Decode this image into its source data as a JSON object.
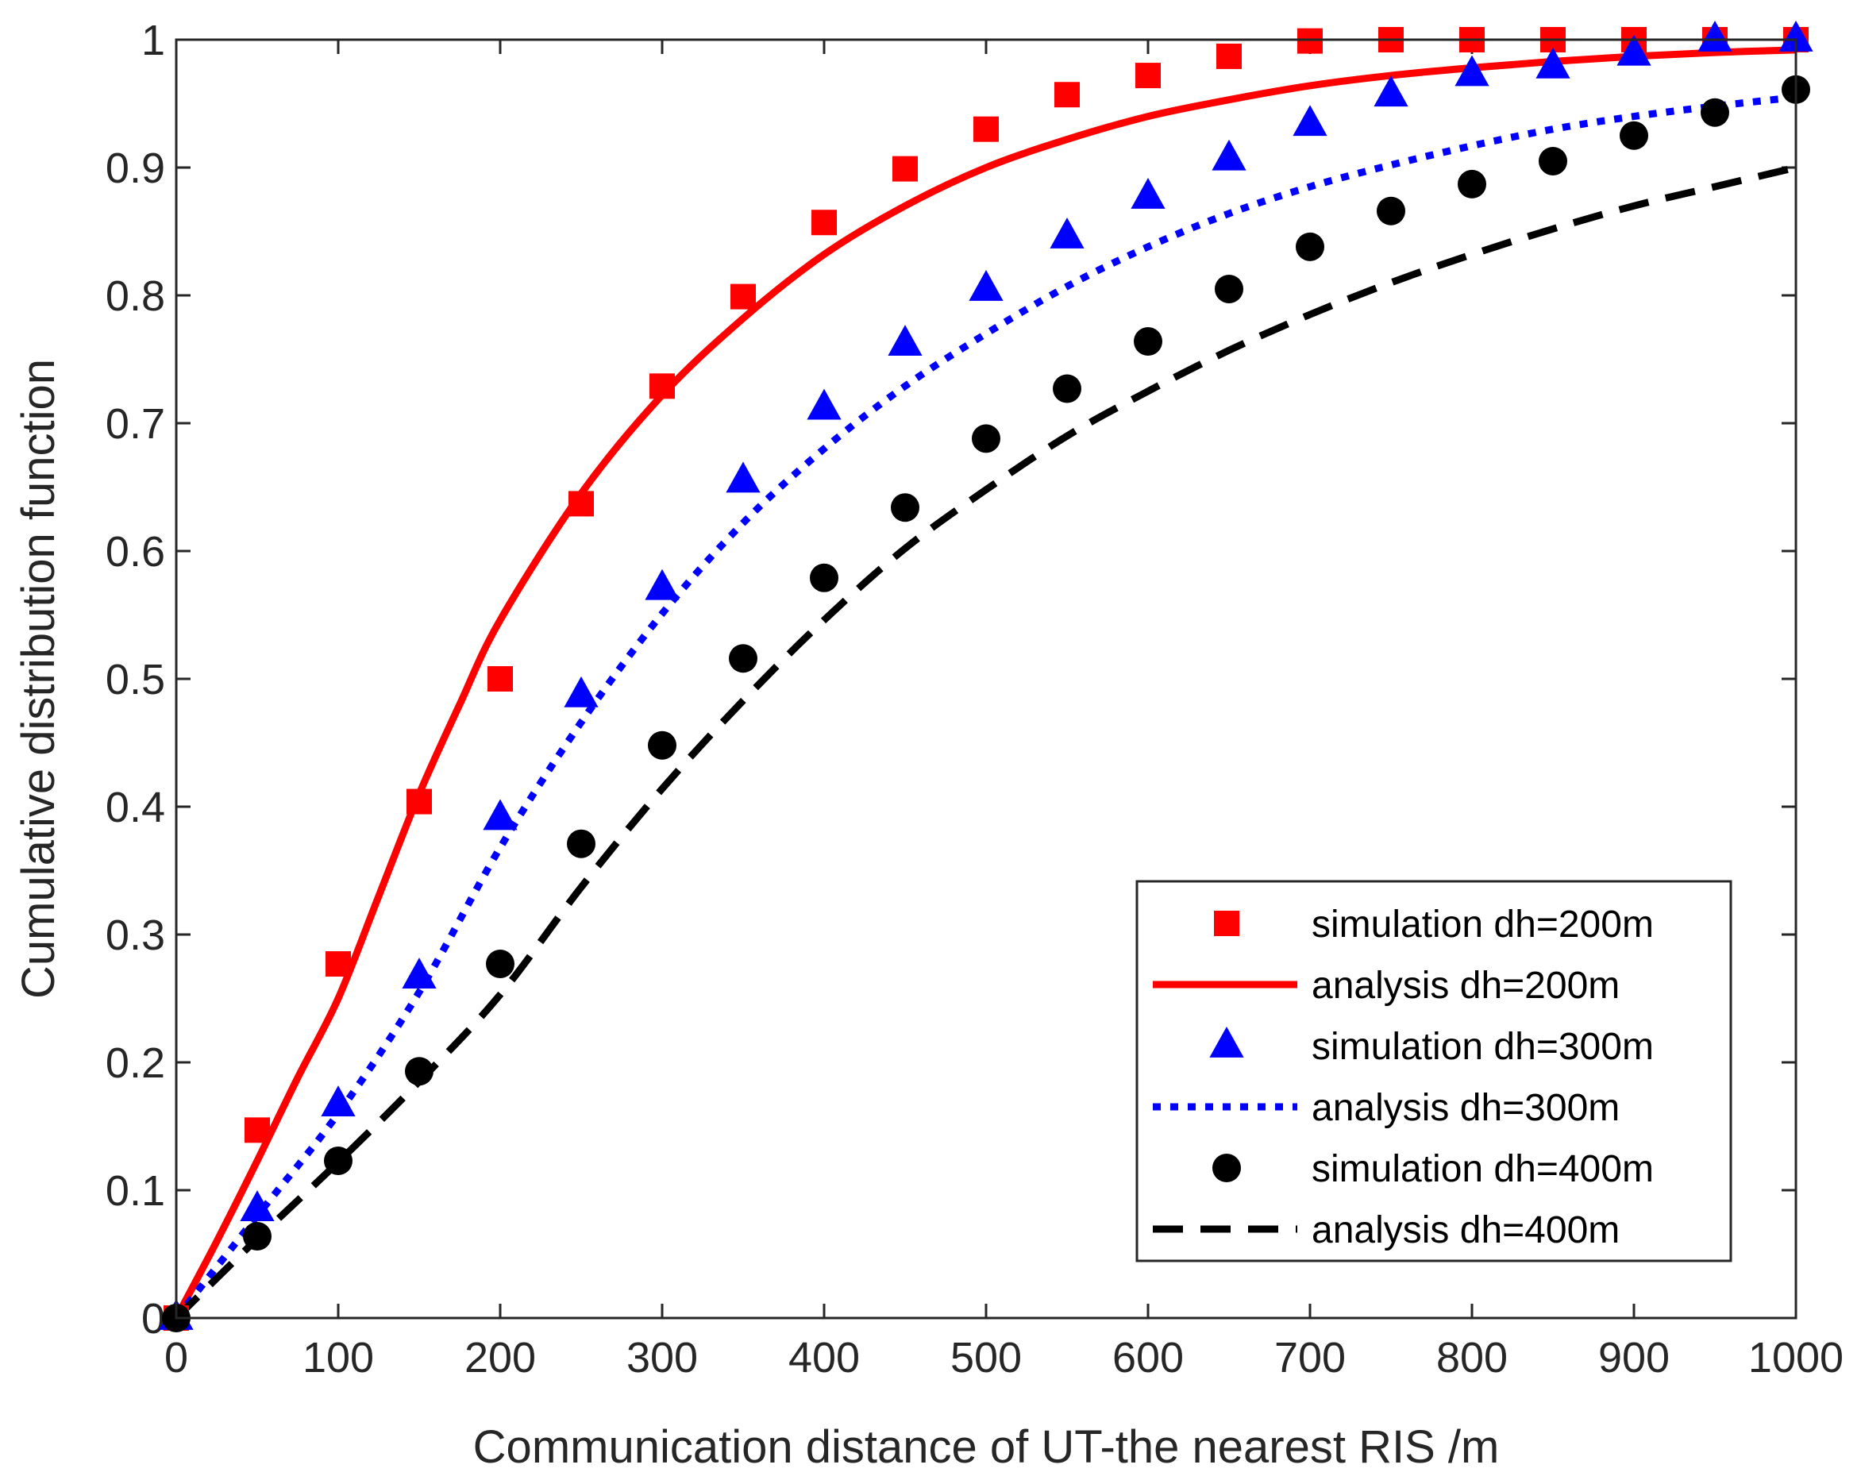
{
  "chart_data": {
    "type": "line",
    "title": "",
    "xlabel": "Communication distance of UT-the nearest RIS /m",
    "ylabel": "Cumulative distribution function",
    "xlim": [
      0,
      1000
    ],
    "ylim": [
      0,
      1
    ],
    "xticks": [
      0,
      100,
      200,
      300,
      400,
      500,
      600,
      700,
      800,
      900,
      1000
    ],
    "xtick_labels": [
      "0",
      "100",
      "200",
      "300",
      "400",
      "500",
      "600",
      "700",
      "800",
      "900",
      "1000"
    ],
    "yticks": [
      0,
      0.1,
      0.2,
      0.3,
      0.4,
      0.5,
      0.6,
      0.7,
      0.8,
      0.9,
      1
    ],
    "ytick_labels": [
      "0",
      "0.1",
      "0.2",
      "0.3",
      "0.4",
      "0.5",
      "0.6",
      "0.7",
      "0.8",
      "0.9",
      "1"
    ],
    "grid": false,
    "legend_position": "bottom-right",
    "series": [
      {
        "name": "simulation dh=200m",
        "kind": "scatter",
        "marker": "square",
        "color": "#ff0000",
        "x": [
          0,
          50,
          100,
          150,
          200,
          250,
          300,
          350,
          400,
          450,
          500,
          550,
          600,
          650,
          700,
          750,
          800,
          850,
          900,
          950,
          1000
        ],
        "y": [
          0,
          0.147,
          0.277,
          0.404,
          0.5,
          0.637,
          0.729,
          0.799,
          0.857,
          0.899,
          0.93,
          0.957,
          0.972,
          0.987,
          0.999,
          1,
          1,
          1,
          1,
          1,
          1
        ]
      },
      {
        "name": "analysis dh=200m",
        "kind": "line",
        "style": "solid",
        "color": "#ff0000",
        "x": [
          0,
          25,
          50,
          75,
          100,
          125,
          150,
          175,
          200,
          250,
          300,
          350,
          400,
          450,
          500,
          550,
          600,
          650,
          700,
          750,
          800,
          850,
          900,
          950,
          1000
        ],
        "y": [
          0,
          0.06,
          0.123,
          0.188,
          0.25,
          0.33,
          0.41,
          0.48,
          0.546,
          0.645,
          0.722,
          0.782,
          0.832,
          0.87,
          0.9,
          0.922,
          0.94,
          0.953,
          0.964,
          0.972,
          0.978,
          0.983,
          0.987,
          0.99,
          0.992
        ]
      },
      {
        "name": "simulation dh=300m",
        "kind": "scatter",
        "marker": "triangle",
        "color": "#0000ff",
        "x": [
          0,
          50,
          100,
          150,
          200,
          250,
          300,
          350,
          400,
          450,
          500,
          550,
          600,
          650,
          700,
          750,
          800,
          850,
          900,
          950,
          1000
        ],
        "y": [
          0,
          0.085,
          0.167,
          0.267,
          0.391,
          0.487,
          0.571,
          0.655,
          0.712,
          0.762,
          0.805,
          0.846,
          0.877,
          0.907,
          0.934,
          0.957,
          0.973,
          0.979,
          0.989,
          1,
          1
        ]
      },
      {
        "name": "analysis dh=300m",
        "kind": "line",
        "style": "dotted",
        "color": "#0000ff",
        "x": [
          0,
          50,
          100,
          150,
          200,
          250,
          300,
          350,
          400,
          450,
          500,
          550,
          600,
          650,
          700,
          750,
          800,
          850,
          900,
          950,
          1000
        ],
        "y": [
          0,
          0.08,
          0.16,
          0.255,
          0.368,
          0.466,
          0.551,
          0.622,
          0.68,
          0.729,
          0.77,
          0.807,
          0.838,
          0.864,
          0.885,
          0.902,
          0.917,
          0.93,
          0.94,
          0.948,
          0.955
        ]
      },
      {
        "name": "simulation dh=400m",
        "kind": "scatter",
        "marker": "circle",
        "color": "#000000",
        "x": [
          0,
          50,
          100,
          150,
          200,
          250,
          300,
          350,
          400,
          450,
          500,
          550,
          600,
          650,
          700,
          750,
          800,
          850,
          900,
          950,
          1000
        ],
        "y": [
          0,
          0.064,
          0.123,
          0.193,
          0.277,
          0.371,
          0.448,
          0.516,
          0.579,
          0.634,
          0.688,
          0.727,
          0.764,
          0.805,
          0.838,
          0.866,
          0.887,
          0.905,
          0.925,
          0.943,
          0.961
        ]
      },
      {
        "name": "analysis dh=400m",
        "kind": "line",
        "style": "dashed",
        "color": "#000000",
        "x": [
          0,
          50,
          100,
          150,
          200,
          250,
          300,
          350,
          400,
          450,
          500,
          550,
          600,
          650,
          700,
          750,
          800,
          850,
          900,
          950,
          1000
        ],
        "y": [
          0,
          0.062,
          0.122,
          0.185,
          0.253,
          0.337,
          0.414,
          0.483,
          0.546,
          0.602,
          0.648,
          0.69,
          0.725,
          0.757,
          0.785,
          0.81,
          0.832,
          0.852,
          0.87,
          0.885,
          0.9
        ]
      }
    ]
  }
}
